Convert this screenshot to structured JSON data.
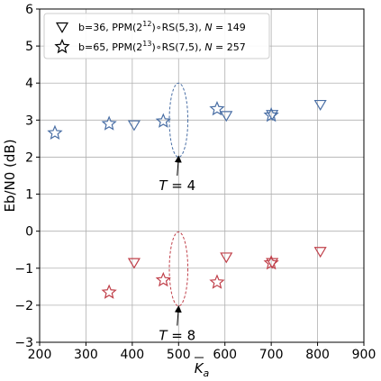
{
  "chart_data": {
    "type": "scatter",
    "xlabel_base": "K",
    "xlabel_sub": "a",
    "ylabel": "Eb/N0 (dB)",
    "xlim": [
      200,
      900
    ],
    "ylim": [
      -3,
      6
    ],
    "xticks": [
      200,
      300,
      400,
      500,
      600,
      700,
      800,
      900
    ],
    "yticks": [
      -3,
      -2,
      -1,
      0,
      1,
      2,
      3,
      4,
      5,
      6
    ],
    "grid": true,
    "legend_position": "top-left",
    "series": [
      {
        "marker": "triangle-down",
        "legend": {
          "p1": "b=36, PPM(2",
          "p1sup": "12",
          "p2": ")∘RS(5,3), ",
          "p3": "N",
          "p4": " = 149"
        },
        "groups": [
          {
            "color": "#4a6fa5",
            "x": [
              404,
              603,
              702,
              806
            ],
            "y": [
              2.87,
              3.12,
              3.15,
              3.42
            ]
          },
          {
            "color": "#c0404a",
            "x": [
              404,
              603,
              702,
              806
            ],
            "y": [
              -0.85,
              -0.7,
              -0.85,
              -0.55
            ]
          }
        ]
      },
      {
        "marker": "star",
        "legend": {
          "p1": "b=65, PPM(2",
          "p1sup": "13",
          "p2": ")∘RS(7,5), ",
          "p3": "N",
          "p4": " = 257"
        },
        "groups": [
          {
            "color": "#4a6fa5",
            "x": [
              233,
              350,
              467,
              583,
              700
            ],
            "y": [
              2.65,
              2.9,
              2.97,
              3.3,
              3.13
            ]
          },
          {
            "color": "#c0404a",
            "x": [
              233,
              350,
              467,
              583,
              700
            ],
            "y": [
              null,
              -1.65,
              -1.32,
              -1.38,
              -0.86
            ]
          }
        ]
      }
    ],
    "annotations": [
      {
        "label_base": "T",
        "label_value": " = 4",
        "ellipse": {
          "cx": 500,
          "cy": 3.0,
          "rx": 20,
          "ry": 1.0,
          "color": "#4a6fa5"
        },
        "arrow_from": [
          497,
          1.5
        ],
        "arrow_to": [
          500,
          2.0
        ]
      },
      {
        "label_base": "T",
        "label_value": " = 8",
        "ellipse": {
          "cx": 500,
          "cy": -1.02,
          "rx": 20,
          "ry": 1.0,
          "color": "#c0404a"
        },
        "arrow_from": [
          497,
          -2.55
        ],
        "arrow_to": [
          500,
          -2.05
        ]
      }
    ]
  }
}
